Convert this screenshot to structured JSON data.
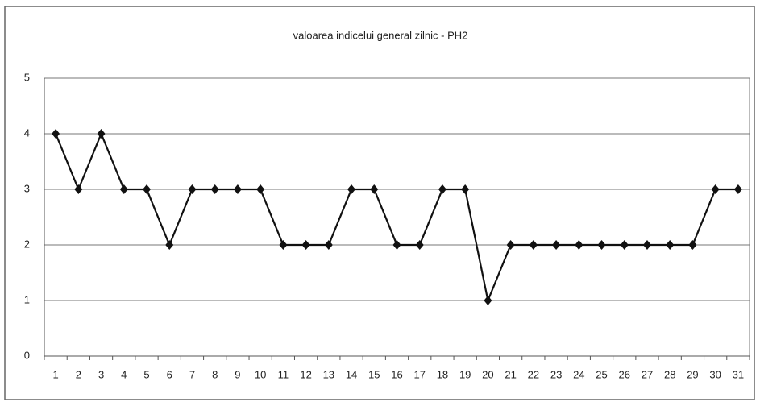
{
  "chart_data": {
    "type": "line",
    "title": "valoarea indicelui general zilnic - PH2",
    "categories": [
      "1",
      "2",
      "3",
      "4",
      "5",
      "6",
      "7",
      "8",
      "9",
      "10",
      "11",
      "12",
      "13",
      "14",
      "15",
      "16",
      "17",
      "18",
      "19",
      "20",
      "21",
      "22",
      "23",
      "24",
      "25",
      "26",
      "27",
      "28",
      "29",
      "30",
      "31"
    ],
    "series": [
      {
        "name": "PH2",
        "color": "#111111",
        "values": [
          4,
          3,
          4,
          3,
          3,
          2,
          3,
          3,
          3,
          3,
          2,
          2,
          2,
          3,
          3,
          2,
          2,
          3,
          3,
          1,
          2,
          2,
          2,
          2,
          2,
          2,
          2,
          2,
          2,
          3,
          3
        ]
      }
    ],
    "ylim": [
      0,
      5
    ],
    "yticks": [
      0,
      1,
      2,
      3,
      4,
      5
    ],
    "grid": true,
    "legend": false
  }
}
